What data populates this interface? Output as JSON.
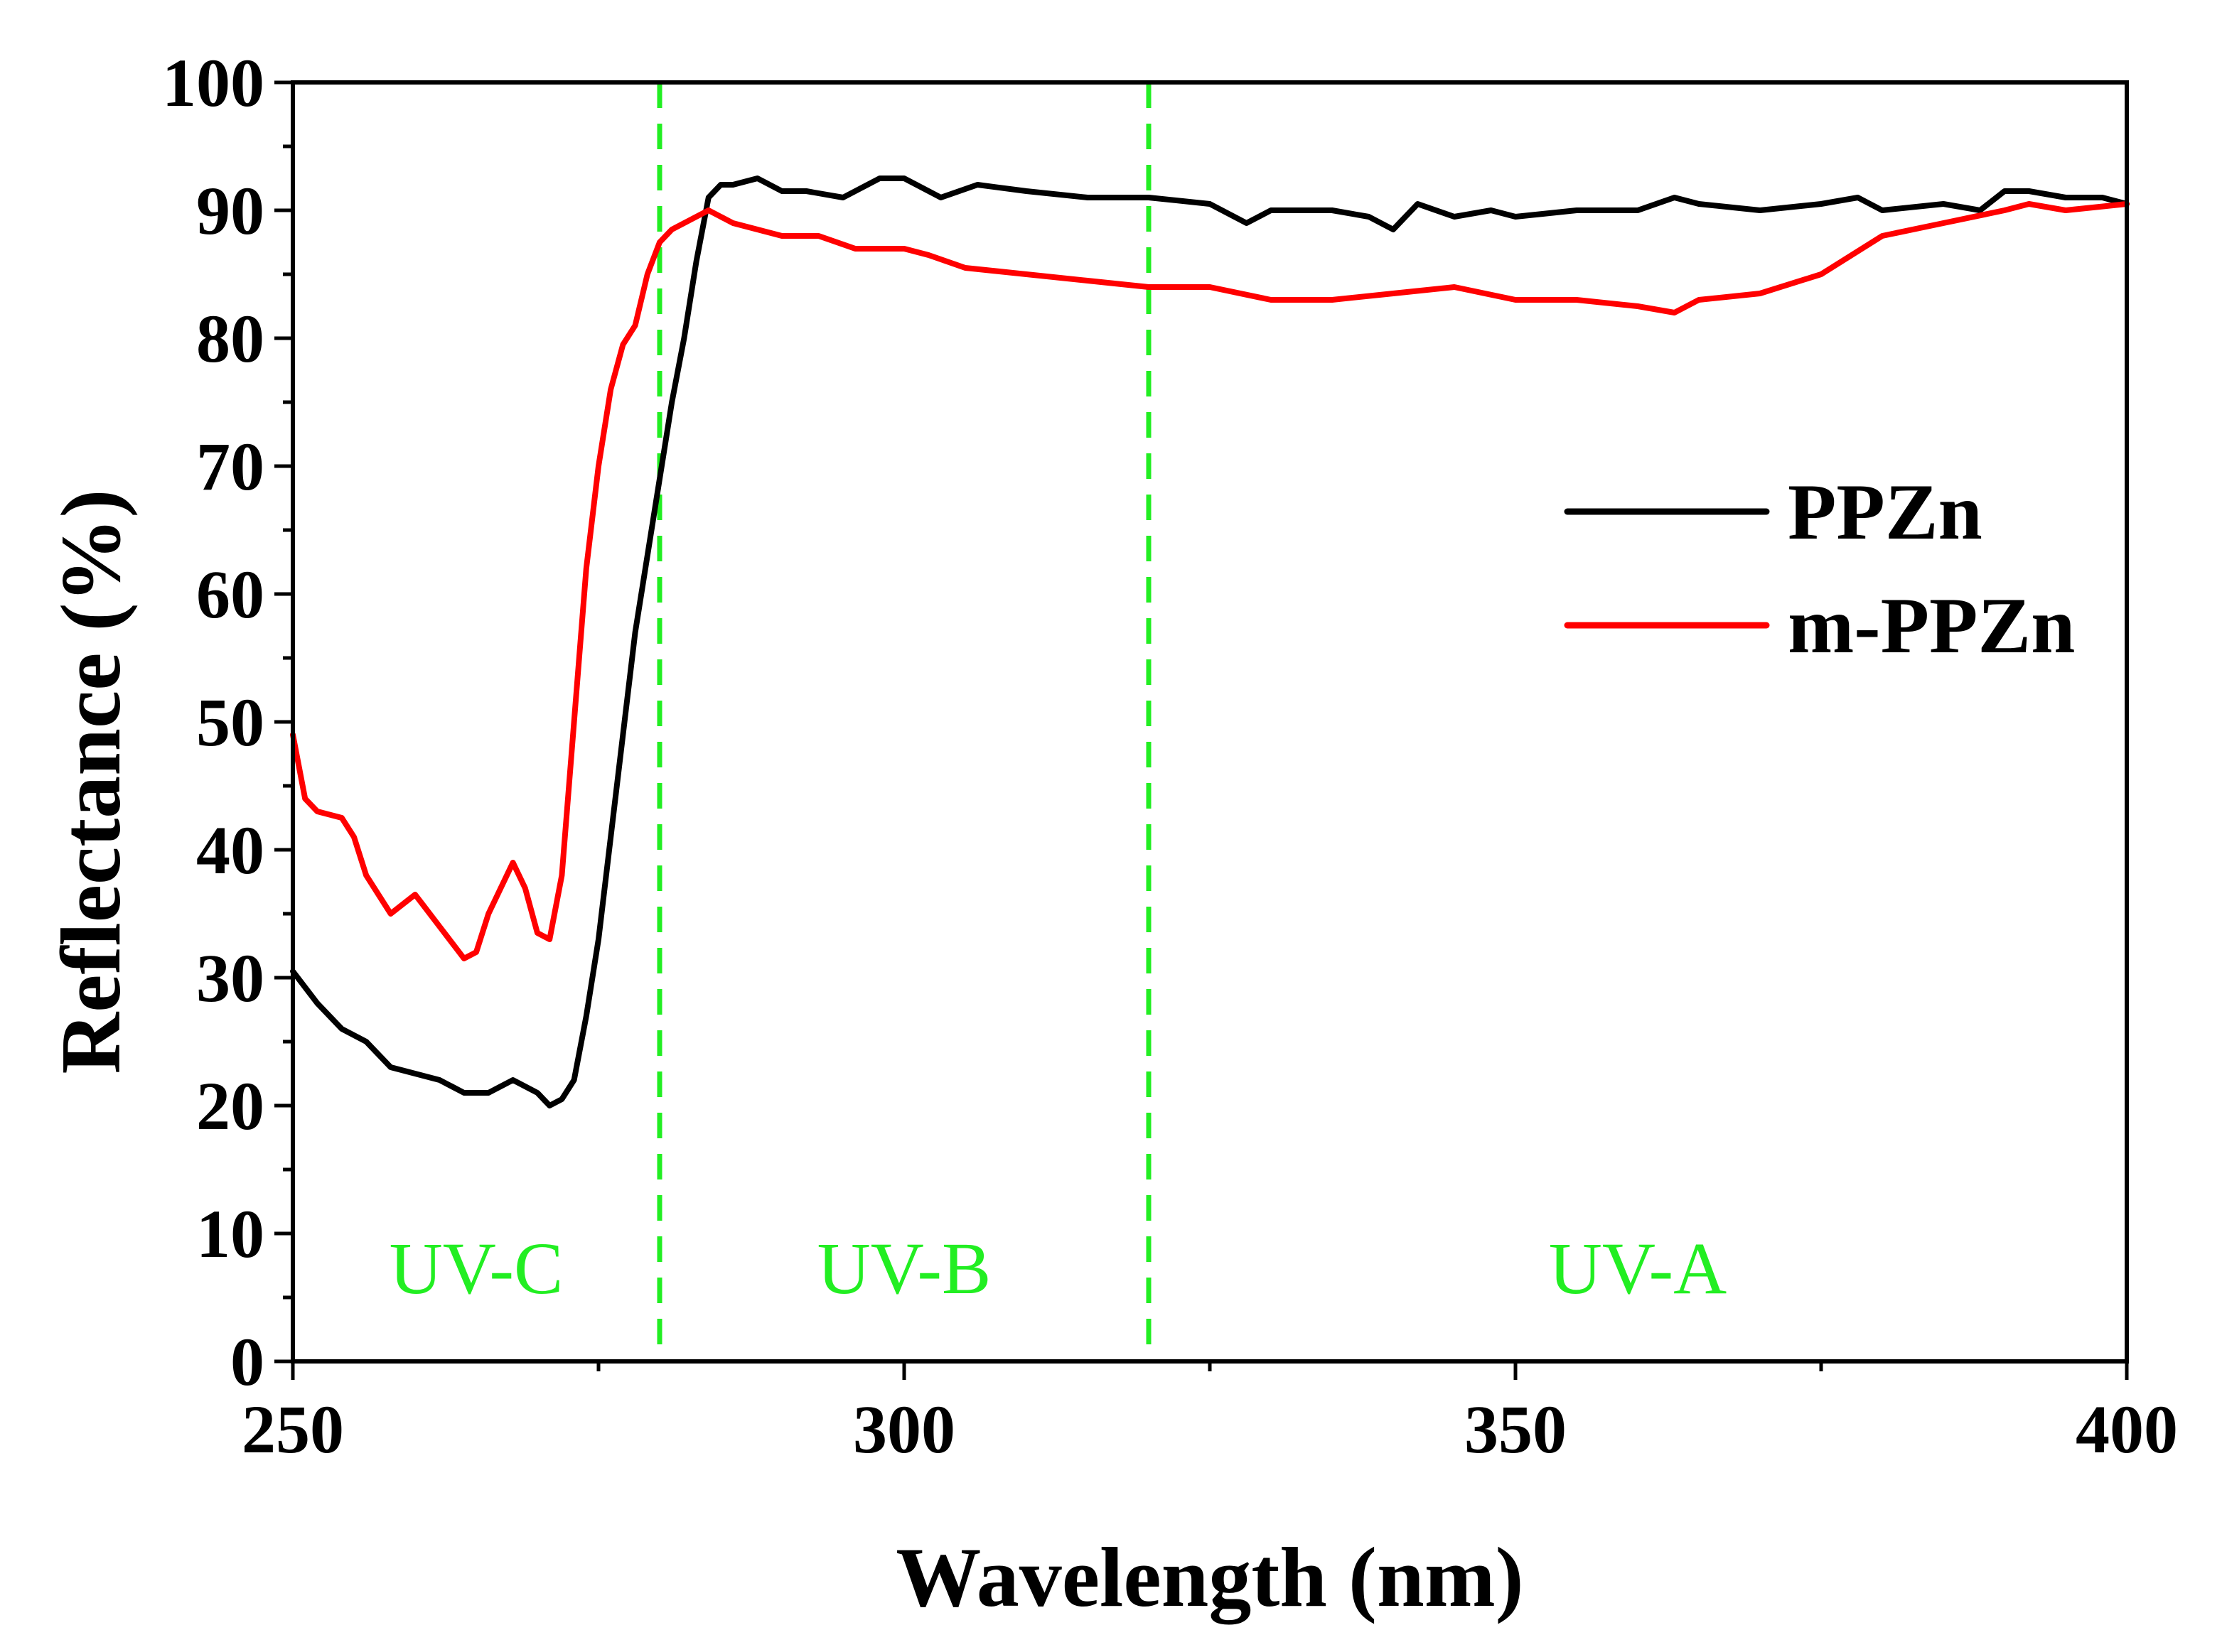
{
  "chart_data": {
    "type": "line",
    "title": "",
    "xlabel": "Wavelength (nm)",
    "ylabel": "Reflectance (%)",
    "xlim": [
      250,
      400
    ],
    "ylim": [
      0,
      100
    ],
    "x_ticks": [
      250,
      300,
      350,
      400
    ],
    "y_ticks": [
      0,
      10,
      20,
      30,
      40,
      50,
      60,
      70,
      80,
      90,
      100
    ],
    "x_minor_step": 25,
    "y_minor_step": 5,
    "grid": false,
    "legend_position": "right",
    "series": [
      {
        "name": "PPZn",
        "color": "#000000",
        "x": [
          250,
          252,
          254,
          256,
          258,
          260,
          262,
          264,
          266,
          268,
          270,
          271,
          272,
          273,
          274,
          275,
          276,
          277,
          278,
          279,
          280,
          281,
          282,
          283,
          284,
          285,
          286,
          288,
          290,
          292,
          295,
          298,
          300,
          303,
          306,
          310,
          315,
          320,
          325,
          328,
          330,
          335,
          338,
          340,
          342,
          345,
          348,
          350,
          355,
          360,
          363,
          365,
          370,
          375,
          378,
          380,
          385,
          388,
          390,
          392,
          395,
          398,
          400
        ],
        "y": [
          30.5,
          28,
          26,
          25,
          23,
          22.5,
          22,
          21,
          21,
          22,
          21,
          20,
          20.5,
          22,
          27,
          33,
          41,
          49,
          57,
          63,
          69,
          75,
          80,
          86,
          91,
          92,
          92,
          92.5,
          91.5,
          91.5,
          91,
          92.5,
          92.5,
          91,
          92,
          91.5,
          91,
          91,
          90.5,
          89,
          90,
          90,
          89.5,
          88.5,
          90.5,
          89.5,
          90,
          89.5,
          90,
          90,
          91,
          90.5,
          90,
          90.5,
          91,
          90,
          90.5,
          90,
          91.5,
          91.5,
          91,
          91,
          90.5
        ]
      },
      {
        "name": "m-PPZn",
        "color": "#ff0000",
        "x": [
          250,
          251,
          252,
          254,
          255,
          256,
          258,
          260,
          262,
          264,
          265,
          266,
          268,
          269,
          270,
          271,
          272,
          273,
          274,
          275,
          276,
          277,
          278,
          279,
          280,
          281,
          282,
          283,
          284,
          285,
          286,
          288,
          290,
          293,
          296,
          300,
          302,
          305,
          310,
          315,
          320,
          325,
          330,
          335,
          340,
          345,
          350,
          355,
          360,
          363,
          365,
          370,
          375,
          380,
          385,
          390,
          392,
          395,
          400
        ],
        "y": [
          49,
          44,
          43,
          42.5,
          41,
          38,
          35,
          36.5,
          34,
          31.5,
          32,
          35,
          39,
          37,
          33.5,
          33,
          38,
          50,
          62,
          70,
          76,
          79.5,
          81,
          85,
          87.5,
          88.5,
          89,
          89.5,
          90,
          89.5,
          89,
          88.5,
          88,
          88,
          87,
          87,
          86.5,
          85.5,
          85,
          84.5,
          84,
          84,
          83,
          83,
          83.5,
          84,
          83,
          83,
          82.5,
          82,
          83,
          83.5,
          85,
          88,
          89,
          90,
          90.5,
          90,
          90.5
        ]
      }
    ],
    "regions": [
      {
        "label": "UV-C",
        "x_from": 250,
        "x_to": 280
      },
      {
        "label": "UV-B",
        "x_from": 280,
        "x_to": 320
      },
      {
        "label": "UV-A",
        "x_from": 320,
        "x_to": 400
      }
    ],
    "boundaries": [
      280,
      320
    ],
    "boundary_color": "#22ee22"
  }
}
